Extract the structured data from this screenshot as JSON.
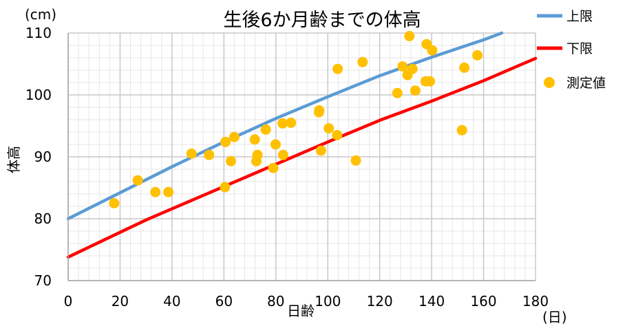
{
  "chart_data": {
    "type": "line",
    "title": "生後6か月齢までの体高",
    "xlabel": "日齢",
    "ylabel": "体高",
    "x_unit": "(日)",
    "y_unit": "(cm)",
    "xlim": [
      0,
      180
    ],
    "ylim": [
      70,
      110
    ],
    "x_ticks": [
      0,
      20,
      40,
      60,
      80,
      100,
      120,
      140,
      160,
      180
    ],
    "y_ticks": [
      70,
      80,
      90,
      100,
      110
    ],
    "grid": true,
    "legend_position": "top-right",
    "series": [
      {
        "name": "上限",
        "kind": "line",
        "color": "#5b9bd5",
        "x": [
          0,
          20,
          40,
          60,
          80,
          100,
          120,
          140,
          160,
          167
        ],
        "y": [
          80.0,
          84.2,
          88.4,
          92.4,
          96.2,
          99.7,
          103.1,
          106.1,
          108.9,
          110.0
        ]
      },
      {
        "name": "下限",
        "kind": "line",
        "color": "#ff0000",
        "x": [
          0,
          10,
          20,
          30,
          40,
          60,
          80,
          100,
          120,
          140,
          160,
          180
        ],
        "y": [
          73.8,
          75.8,
          77.8,
          79.8,
          81.6,
          85.2,
          88.8,
          92.4,
          95.9,
          99.0,
          102.3,
          105.9
        ]
      },
      {
        "name": "測定値",
        "kind": "scatter",
        "color": "#ffc000",
        "x": [
          17.7,
          26.8,
          33.6,
          38.6,
          47.5,
          54.3,
          60.4,
          60.6,
          62.7,
          64.0,
          71.9,
          72.5,
          72.9,
          76.1,
          79.0,
          79.9,
          82.6,
          82.8,
          85.8,
          96.6,
          96.7,
          97.4,
          100.4,
          103.6,
          103.8,
          110.8,
          113.4,
          126.8,
          128.8,
          130.7,
          131.4,
          132.6,
          133.7,
          137.7,
          138.1,
          139.3,
          140.2,
          151.7,
          152.6,
          157.6
        ],
        "y": [
          82.5,
          86.2,
          84.3,
          84.3,
          90.5,
          90.3,
          85.1,
          92.4,
          89.3,
          93.2,
          92.8,
          89.3,
          90.3,
          94.4,
          88.2,
          92.0,
          95.4,
          90.3,
          95.5,
          97.2,
          97.5,
          91.0,
          94.6,
          93.5,
          104.2,
          89.4,
          105.3,
          100.3,
          104.6,
          103.2,
          109.5,
          104.2,
          100.7,
          102.2,
          108.2,
          102.2,
          107.2,
          94.3,
          104.4,
          106.4
        ]
      }
    ]
  }
}
